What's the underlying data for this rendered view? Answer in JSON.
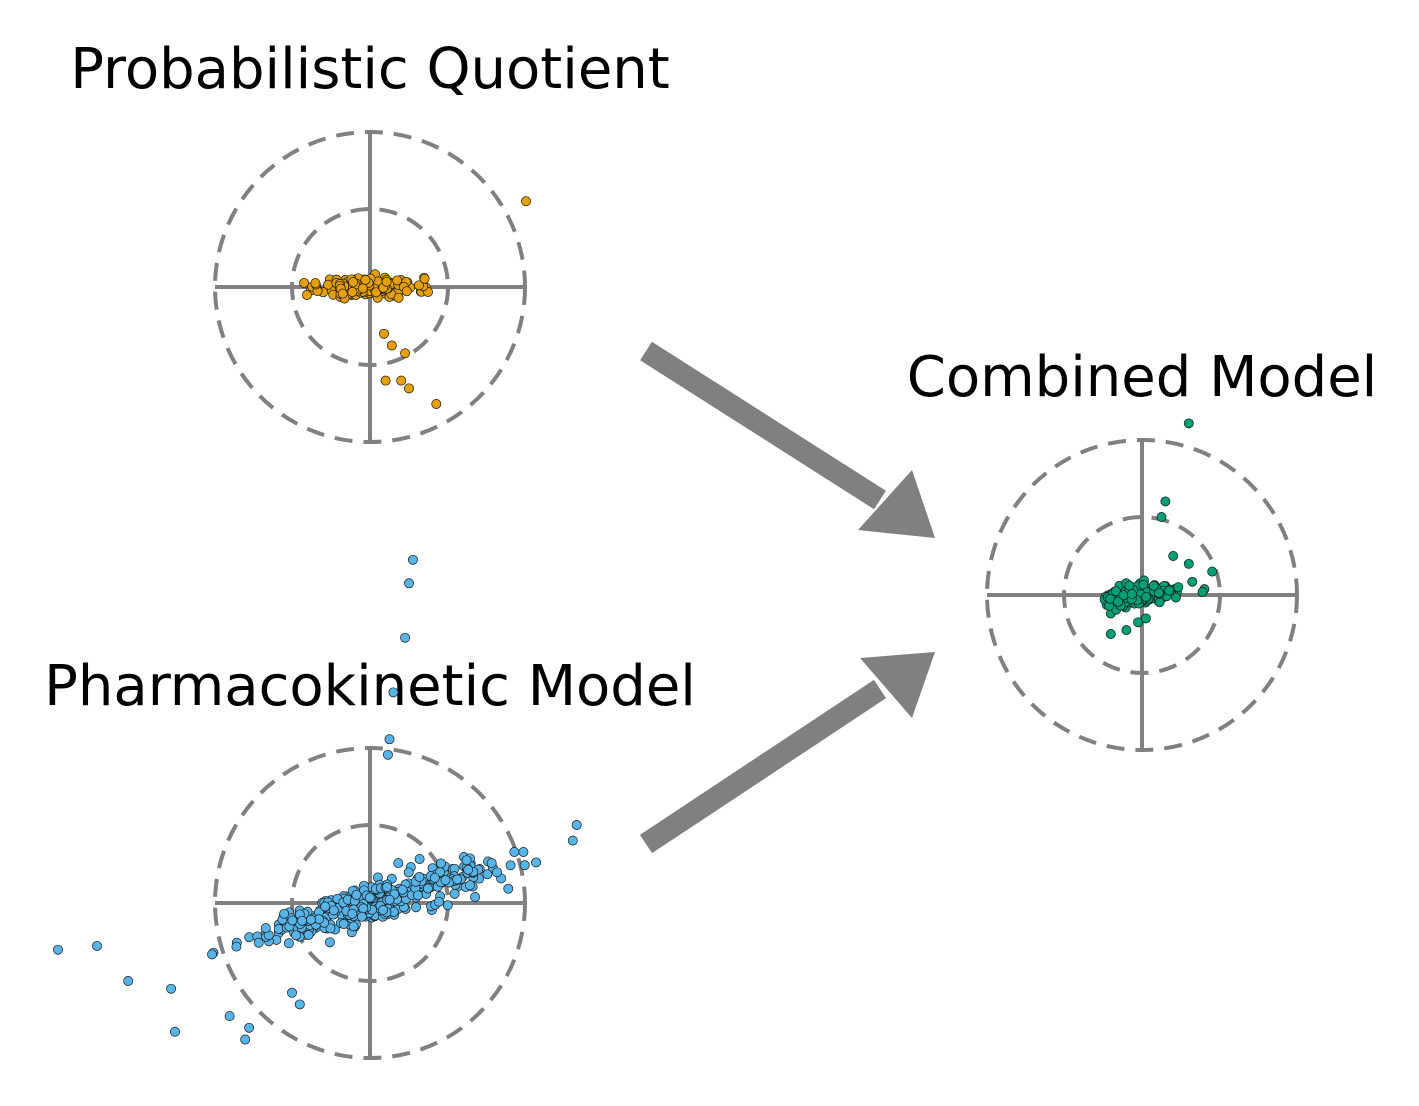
{
  "figure": {
    "panels": [
      {
        "id": "pq",
        "title": "Probabilistic Quotient",
        "point_color": "#E69F00",
        "spread": {
          "x_sd": 0.3,
          "y_sd": 0.06,
          "slope": 0.0
        },
        "outliers": [
          [
            2.0,
            1.1
          ],
          [
            0.18,
            -0.6
          ],
          [
            0.28,
            -0.75
          ],
          [
            0.45,
            -0.85
          ],
          [
            0.4,
            -1.2
          ],
          [
            0.2,
            -1.2
          ],
          [
            0.5,
            -1.3
          ],
          [
            0.85,
            -1.5
          ],
          [
            -0.7,
            0.05
          ]
        ]
      },
      {
        "id": "pk",
        "title": "Pharmacokinetic Model",
        "point_color": "#56B4E9",
        "spread": {
          "x_sd": 0.75,
          "y_sd": 0.12,
          "slope": 0.28
        },
        "outliers": [
          [
            0.55,
            4.4
          ],
          [
            0.5,
            4.1
          ],
          [
            0.45,
            3.4
          ],
          [
            0.3,
            2.7
          ],
          [
            0.25,
            2.1
          ],
          [
            0.23,
            1.9
          ],
          [
            2.65,
            1.0
          ],
          [
            2.6,
            0.8
          ],
          [
            -4.0,
            -0.6
          ],
          [
            -3.5,
            -0.55
          ],
          [
            -3.1,
            -1.0
          ],
          [
            -2.55,
            -1.1
          ],
          [
            -2.5,
            -1.65
          ],
          [
            -1.55,
            -1.6
          ],
          [
            -1.6,
            -1.75
          ],
          [
            -1.8,
            -1.45
          ],
          [
            -1.0,
            -1.15
          ],
          [
            -0.9,
            -1.3
          ]
        ]
      },
      {
        "id": "combined",
        "title": "Combined Model",
        "point_color": "#009E73",
        "spread": {
          "x_sd": 0.25,
          "y_sd": 0.06,
          "slope": 0.12
        },
        "outliers": [
          [
            0.6,
            2.2
          ],
          [
            0.3,
            1.2
          ],
          [
            0.25,
            1.0
          ],
          [
            0.4,
            0.5
          ],
          [
            0.6,
            0.4
          ],
          [
            0.9,
            0.3
          ],
          [
            -0.05,
            -0.35
          ],
          [
            -0.2,
            -0.45
          ],
          [
            -0.4,
            -0.5
          ],
          [
            0.05,
            -0.3
          ]
        ]
      }
    ]
  }
}
